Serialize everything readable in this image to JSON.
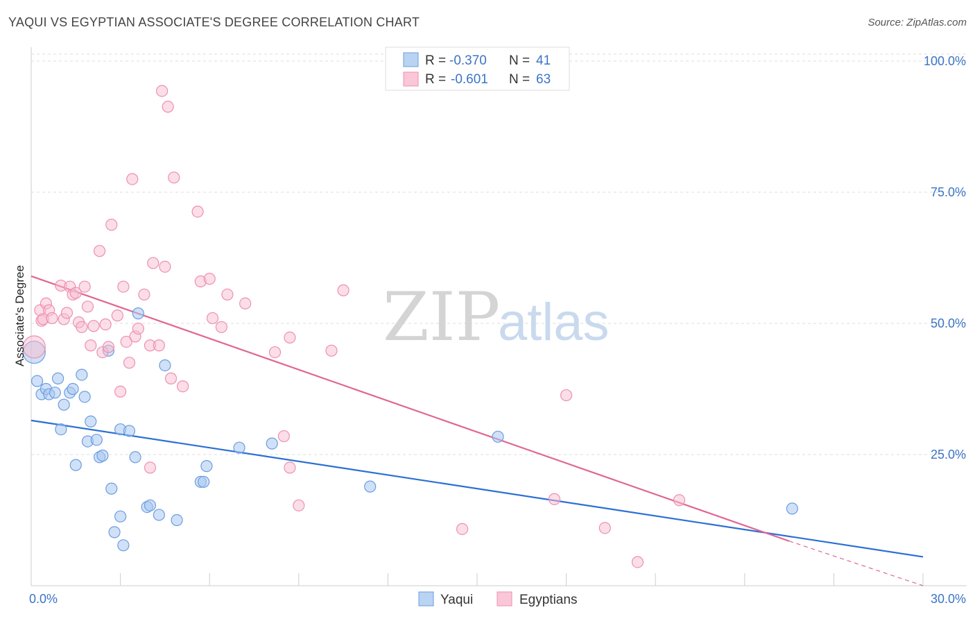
{
  "header": {
    "title": "YAQUI VS EGYPTIAN ASSOCIATE'S DEGREE CORRELATION CHART",
    "source": "Source: ZipAtlas.com"
  },
  "watermark": {
    "zip": "ZIP",
    "atlas": "atlas"
  },
  "legend_top": {
    "rows": [
      {
        "r_label": "R =",
        "r_value": "-0.370",
        "n_label": "N =",
        "n_value": "41"
      },
      {
        "r_label": "R =",
        "r_value": "-0.601",
        "n_label": "N =",
        "n_value": "63"
      }
    ]
  },
  "legend_bottom": {
    "series1": "Yaqui",
    "series2": "Egyptians"
  },
  "colors": {
    "yaqui_fill": "#a9c8f0",
    "yaqui_stroke": "#6a9de0",
    "yaqui_line": "#2b6fd4",
    "egypt_fill": "#f7bdd0",
    "egypt_stroke": "#ee8fb0",
    "egypt_line": "#e06692",
    "grid": "#dddddd",
    "tick_label": "#3b74c6"
  },
  "chart_data": {
    "type": "scatter",
    "title": "YAQUI VS EGYPTIAN ASSOCIATE'S DEGREE CORRELATION CHART",
    "xlabel": "",
    "ylabel": "Associate's Degree",
    "xlim": [
      0,
      30
    ],
    "ylim": [
      0,
      100
    ],
    "x_tick_labels": [
      "0.0%",
      "30.0%"
    ],
    "y_ticks": [
      25,
      50,
      75,
      100
    ],
    "y_tick_labels": [
      "25.0%",
      "50.0%",
      "75.0%",
      "100.0%"
    ],
    "series": [
      {
        "name": "Yaqui",
        "R": -0.37,
        "N": 41,
        "trend": {
          "x": [
            0,
            30
          ],
          "y": [
            31.5,
            5.5
          ]
        },
        "points": [
          [
            0.1,
            44.5
          ],
          [
            0.2,
            39.0
          ],
          [
            0.35,
            36.5
          ],
          [
            0.5,
            37.5
          ],
          [
            0.6,
            36.5
          ],
          [
            0.8,
            36.8
          ],
          [
            0.9,
            39.5
          ],
          [
            1.0,
            29.8
          ],
          [
            1.1,
            34.5
          ],
          [
            1.3,
            36.8
          ],
          [
            1.4,
            37.5
          ],
          [
            1.5,
            23.0
          ],
          [
            1.7,
            40.2
          ],
          [
            1.8,
            36.0
          ],
          [
            1.9,
            27.5
          ],
          [
            2.0,
            31.3
          ],
          [
            2.2,
            27.8
          ],
          [
            2.3,
            24.5
          ],
          [
            2.4,
            24.8
          ],
          [
            2.6,
            44.8
          ],
          [
            2.7,
            18.5
          ],
          [
            2.8,
            10.2
          ],
          [
            3.0,
            13.2
          ],
          [
            3.0,
            29.8
          ],
          [
            3.1,
            7.7
          ],
          [
            3.3,
            29.5
          ],
          [
            3.5,
            24.5
          ],
          [
            3.6,
            51.9
          ],
          [
            3.9,
            15.0
          ],
          [
            4.0,
            15.3
          ],
          [
            4.3,
            13.5
          ],
          [
            4.5,
            42.0
          ],
          [
            4.9,
            12.5
          ],
          [
            5.7,
            19.8
          ],
          [
            5.8,
            19.8
          ],
          [
            5.9,
            22.8
          ],
          [
            7.0,
            26.3
          ],
          [
            8.1,
            27.1
          ],
          [
            11.4,
            18.9
          ],
          [
            15.7,
            28.4
          ],
          [
            25.6,
            14.7
          ]
        ]
      },
      {
        "name": "Egyptians",
        "R": -0.601,
        "N": 63,
        "trend": {
          "x": [
            0,
            25.5
          ],
          "y": [
            59,
            8.5
          ]
        },
        "trend_dashed": {
          "x": [
            25.5,
            30
          ],
          "y": [
            8.5,
            0
          ]
        },
        "points": [
          [
            0.1,
            45.5
          ],
          [
            0.3,
            52.5
          ],
          [
            0.35,
            50.5
          ],
          [
            0.4,
            50.8
          ],
          [
            0.5,
            53.8
          ],
          [
            0.6,
            52.5
          ],
          [
            0.7,
            51.0
          ],
          [
            1.0,
            57.2
          ],
          [
            1.1,
            50.8
          ],
          [
            1.2,
            52.0
          ],
          [
            1.3,
            57.0
          ],
          [
            1.4,
            55.5
          ],
          [
            1.5,
            55.8
          ],
          [
            1.6,
            50.2
          ],
          [
            1.7,
            49.3
          ],
          [
            1.8,
            57.0
          ],
          [
            1.9,
            53.2
          ],
          [
            2.0,
            45.8
          ],
          [
            2.1,
            49.5
          ],
          [
            2.3,
            63.8
          ],
          [
            2.4,
            44.5
          ],
          [
            2.5,
            49.8
          ],
          [
            2.6,
            45.5
          ],
          [
            2.7,
            68.8
          ],
          [
            2.9,
            51.5
          ],
          [
            3.0,
            37.0
          ],
          [
            3.1,
            57.0
          ],
          [
            3.2,
            46.5
          ],
          [
            3.3,
            42.5
          ],
          [
            3.4,
            77.5
          ],
          [
            3.5,
            47.5
          ],
          [
            3.6,
            49.0
          ],
          [
            3.8,
            55.5
          ],
          [
            4.0,
            45.8
          ],
          [
            4.1,
            61.5
          ],
          [
            4.3,
            45.8
          ],
          [
            4.4,
            94.3
          ],
          [
            4.5,
            60.8
          ],
          [
            4.6,
            91.3
          ],
          [
            4.7,
            39.5
          ],
          [
            4.8,
            77.8
          ],
          [
            5.1,
            38.0
          ],
          [
            5.6,
            71.3
          ],
          [
            5.7,
            58.0
          ],
          [
            6.0,
            58.5
          ],
          [
            6.1,
            51.0
          ],
          [
            6.4,
            49.3
          ],
          [
            6.6,
            55.5
          ],
          [
            7.2,
            53.8
          ],
          [
            8.2,
            44.5
          ],
          [
            8.5,
            28.5
          ],
          [
            8.7,
            22.5
          ],
          [
            9.0,
            15.3
          ],
          [
            8.7,
            47.3
          ],
          [
            10.1,
            44.8
          ],
          [
            10.5,
            56.3
          ],
          [
            14.5,
            10.8
          ],
          [
            17.6,
            16.5
          ],
          [
            18.0,
            36.3
          ],
          [
            19.3,
            11.0
          ],
          [
            20.4,
            4.5
          ],
          [
            21.8,
            16.3
          ],
          [
            4.0,
            22.5
          ]
        ]
      }
    ]
  }
}
